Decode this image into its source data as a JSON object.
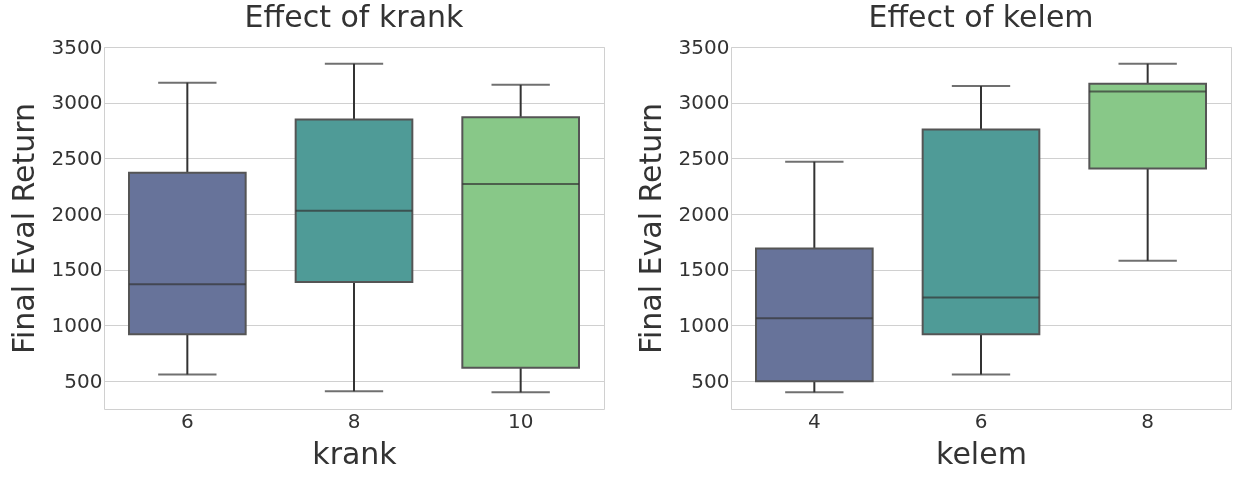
{
  "chart_data": [
    {
      "type": "box",
      "title": "Effect of krank",
      "xlabel": "krank",
      "ylabel": "Final Eval Return",
      "categories": [
        "6",
        "8",
        "10"
      ],
      "colors": [
        "#67739a",
        "#4f9b97",
        "#88c888"
      ],
      "boxes": [
        {
          "low": 560,
          "q1": 920,
          "median": 1370,
          "q3": 2370,
          "high": 3180
        },
        {
          "low": 410,
          "q1": 1390,
          "median": 2030,
          "q3": 2850,
          "high": 3350
        },
        {
          "low": 400,
          "q1": 620,
          "median": 2270,
          "q3": 2870,
          "high": 3160
        }
      ],
      "ylim": [
        250,
        3500
      ],
      "yticks": [
        500,
        1000,
        1500,
        2000,
        2500,
        3000,
        3500
      ],
      "grid": "y"
    },
    {
      "type": "box",
      "title": "Effect of kelem",
      "xlabel": "kelem",
      "ylabel": "Final Eval Return",
      "categories": [
        "4",
        "6",
        "8"
      ],
      "colors": [
        "#67739a",
        "#4f9b97",
        "#88c888"
      ],
      "boxes": [
        {
          "low": 400,
          "q1": 500,
          "median": 1065,
          "q3": 1690,
          "high": 2470
        },
        {
          "low": 560,
          "q1": 920,
          "median": 1250,
          "q3": 2760,
          "high": 3150
        },
        {
          "low": 1580,
          "q1": 2410,
          "median": 3100,
          "q3": 3170,
          "high": 3350
        }
      ],
      "ylim": [
        250,
        3500
      ],
      "yticks": [
        500,
        1000,
        1500,
        2000,
        2500,
        3000,
        3500
      ],
      "grid": "y"
    }
  ]
}
